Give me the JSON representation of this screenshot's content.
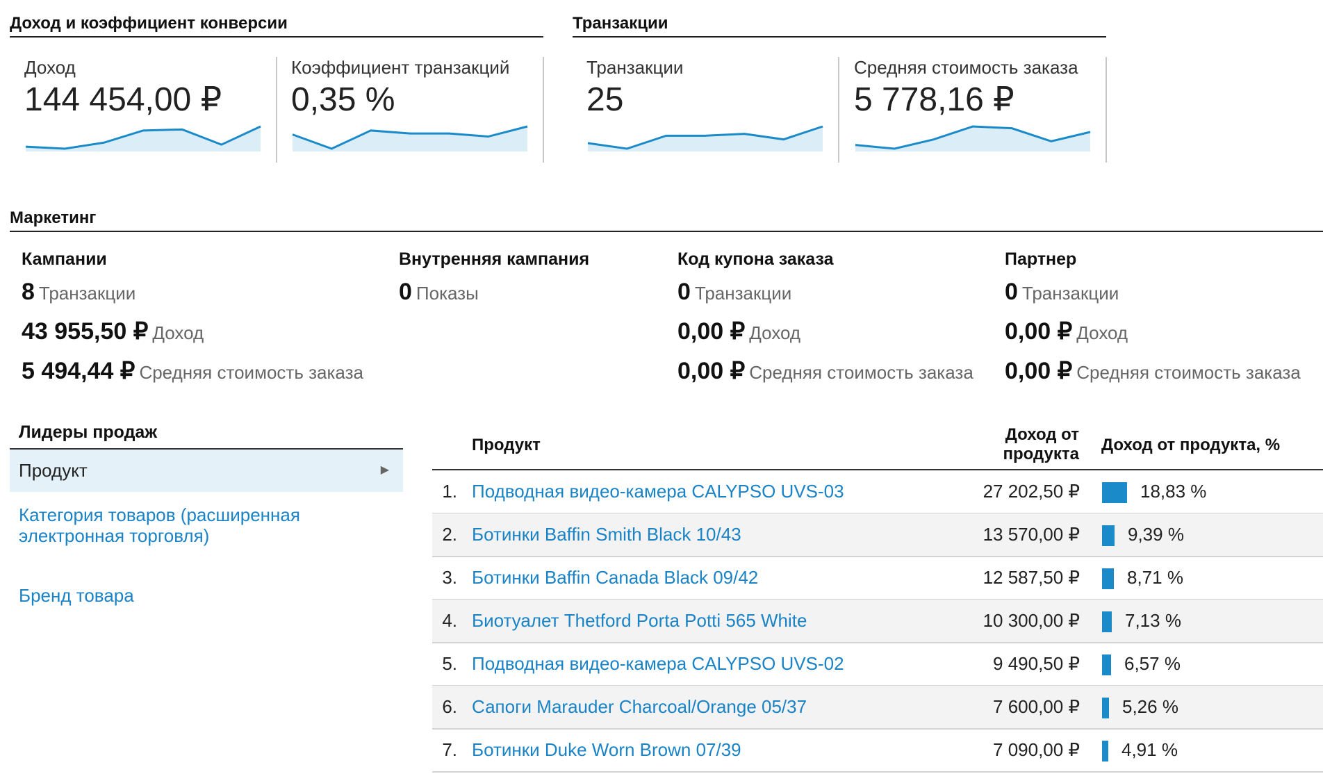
{
  "sections": {
    "conversion_title": "Доход и коэффициент конверсии",
    "transactions_title": "Транзакции",
    "marketing_title": "Маркетинг"
  },
  "kpis": [
    {
      "label": "Доход",
      "value": "144 454,00 ₽",
      "trend": [
        2,
        1,
        4,
        10,
        10.5,
        3,
        12
      ]
    },
    {
      "label": "Коэффициент транзакций",
      "value": "0,35 %",
      "trend": [
        9,
        2,
        11,
        9.5,
        9.5,
        8,
        13
      ]
    },
    {
      "label": "Транзакции",
      "value": "25",
      "trend": [
        5,
        2,
        9,
        9,
        10,
        7,
        14
      ]
    },
    {
      "label": "Средняя стоимость заказа",
      "value": "5 778,16 ₽",
      "trend": [
        4,
        2,
        7,
        14,
        13,
        6,
        11
      ]
    }
  ],
  "marketing": [
    {
      "title": "Кампании",
      "rows": [
        {
          "value": "8",
          "label": "Транзакции"
        },
        {
          "value": "43 955,50 ₽",
          "label": "Доход"
        },
        {
          "value": "5 494,44 ₽",
          "label": "Средняя стоимость заказа"
        }
      ]
    },
    {
      "title": "Внутренняя кампания",
      "rows": [
        {
          "value": "0",
          "label": "Показы"
        }
      ]
    },
    {
      "title": "Код купона заказа",
      "rows": [
        {
          "value": "0",
          "label": "Транзакции"
        },
        {
          "value": "0,00 ₽",
          "label": "Доход"
        },
        {
          "value": "0,00 ₽",
          "label": "Средняя стоимость заказа"
        }
      ]
    },
    {
      "title": "Партнер",
      "rows": [
        {
          "value": "0",
          "label": "Транзакции"
        },
        {
          "value": "0,00 ₽",
          "label": "Доход"
        },
        {
          "value": "0,00 ₽",
          "label": "Средняя стоимость заказа"
        }
      ]
    }
  ],
  "leaders": {
    "title": "Лидеры продаж",
    "dimensions": [
      {
        "label": "Продукт",
        "selected": true
      },
      {
        "label": "Категория товаров (расширенная электронная торговля)",
        "selected": false
      },
      {
        "label": "Бренд товара",
        "selected": false
      }
    ]
  },
  "table": {
    "col_product": "Продукт",
    "col_revenue_line1": "Доход от",
    "col_revenue_line2": "продукта",
    "col_share": "Доход от продукта, %",
    "rows": [
      {
        "rank": "1.",
        "name": "Подводная видео-камера CALYPSO UVS-03",
        "revenue": "27 202,50 ₽",
        "share_text": "18,83 %",
        "share": 18.83
      },
      {
        "rank": "2.",
        "name": "Ботинки Baffin Smith Black 10/43",
        "revenue": "13 570,00 ₽",
        "share_text": "9,39 %",
        "share": 9.39
      },
      {
        "rank": "3.",
        "name": "Ботинки Baffin Canada Black 09/42",
        "revenue": "12 587,50 ₽",
        "share_text": "8,71 %",
        "share": 8.71
      },
      {
        "rank": "4.",
        "name": "Биотуалет Thetford Porta Potti 565 White",
        "revenue": "10 300,00 ₽",
        "share_text": "7,13 %",
        "share": 7.13
      },
      {
        "rank": "5.",
        "name": "Подводная видео-камера CALYPSO UVS-02",
        "revenue": "9 490,50 ₽",
        "share_text": "6,57 %",
        "share": 6.57
      },
      {
        "rank": "6.",
        "name": "Сапоги Marauder Charcoal/Orange 05/37",
        "revenue": "7 600,00 ₽",
        "share_text": "5,26 %",
        "share": 5.26
      },
      {
        "rank": "7.",
        "name": "Ботинки Duke Worn Brown 07/39",
        "revenue": "7 090,00 ₽",
        "share_text": "4,91 %",
        "share": 4.91
      }
    ]
  },
  "colors": {
    "accent": "#1a8ac9",
    "link": "#1a83c6",
    "spark_fill": "#dbeef8",
    "spark_line": "#1a8ac9"
  }
}
